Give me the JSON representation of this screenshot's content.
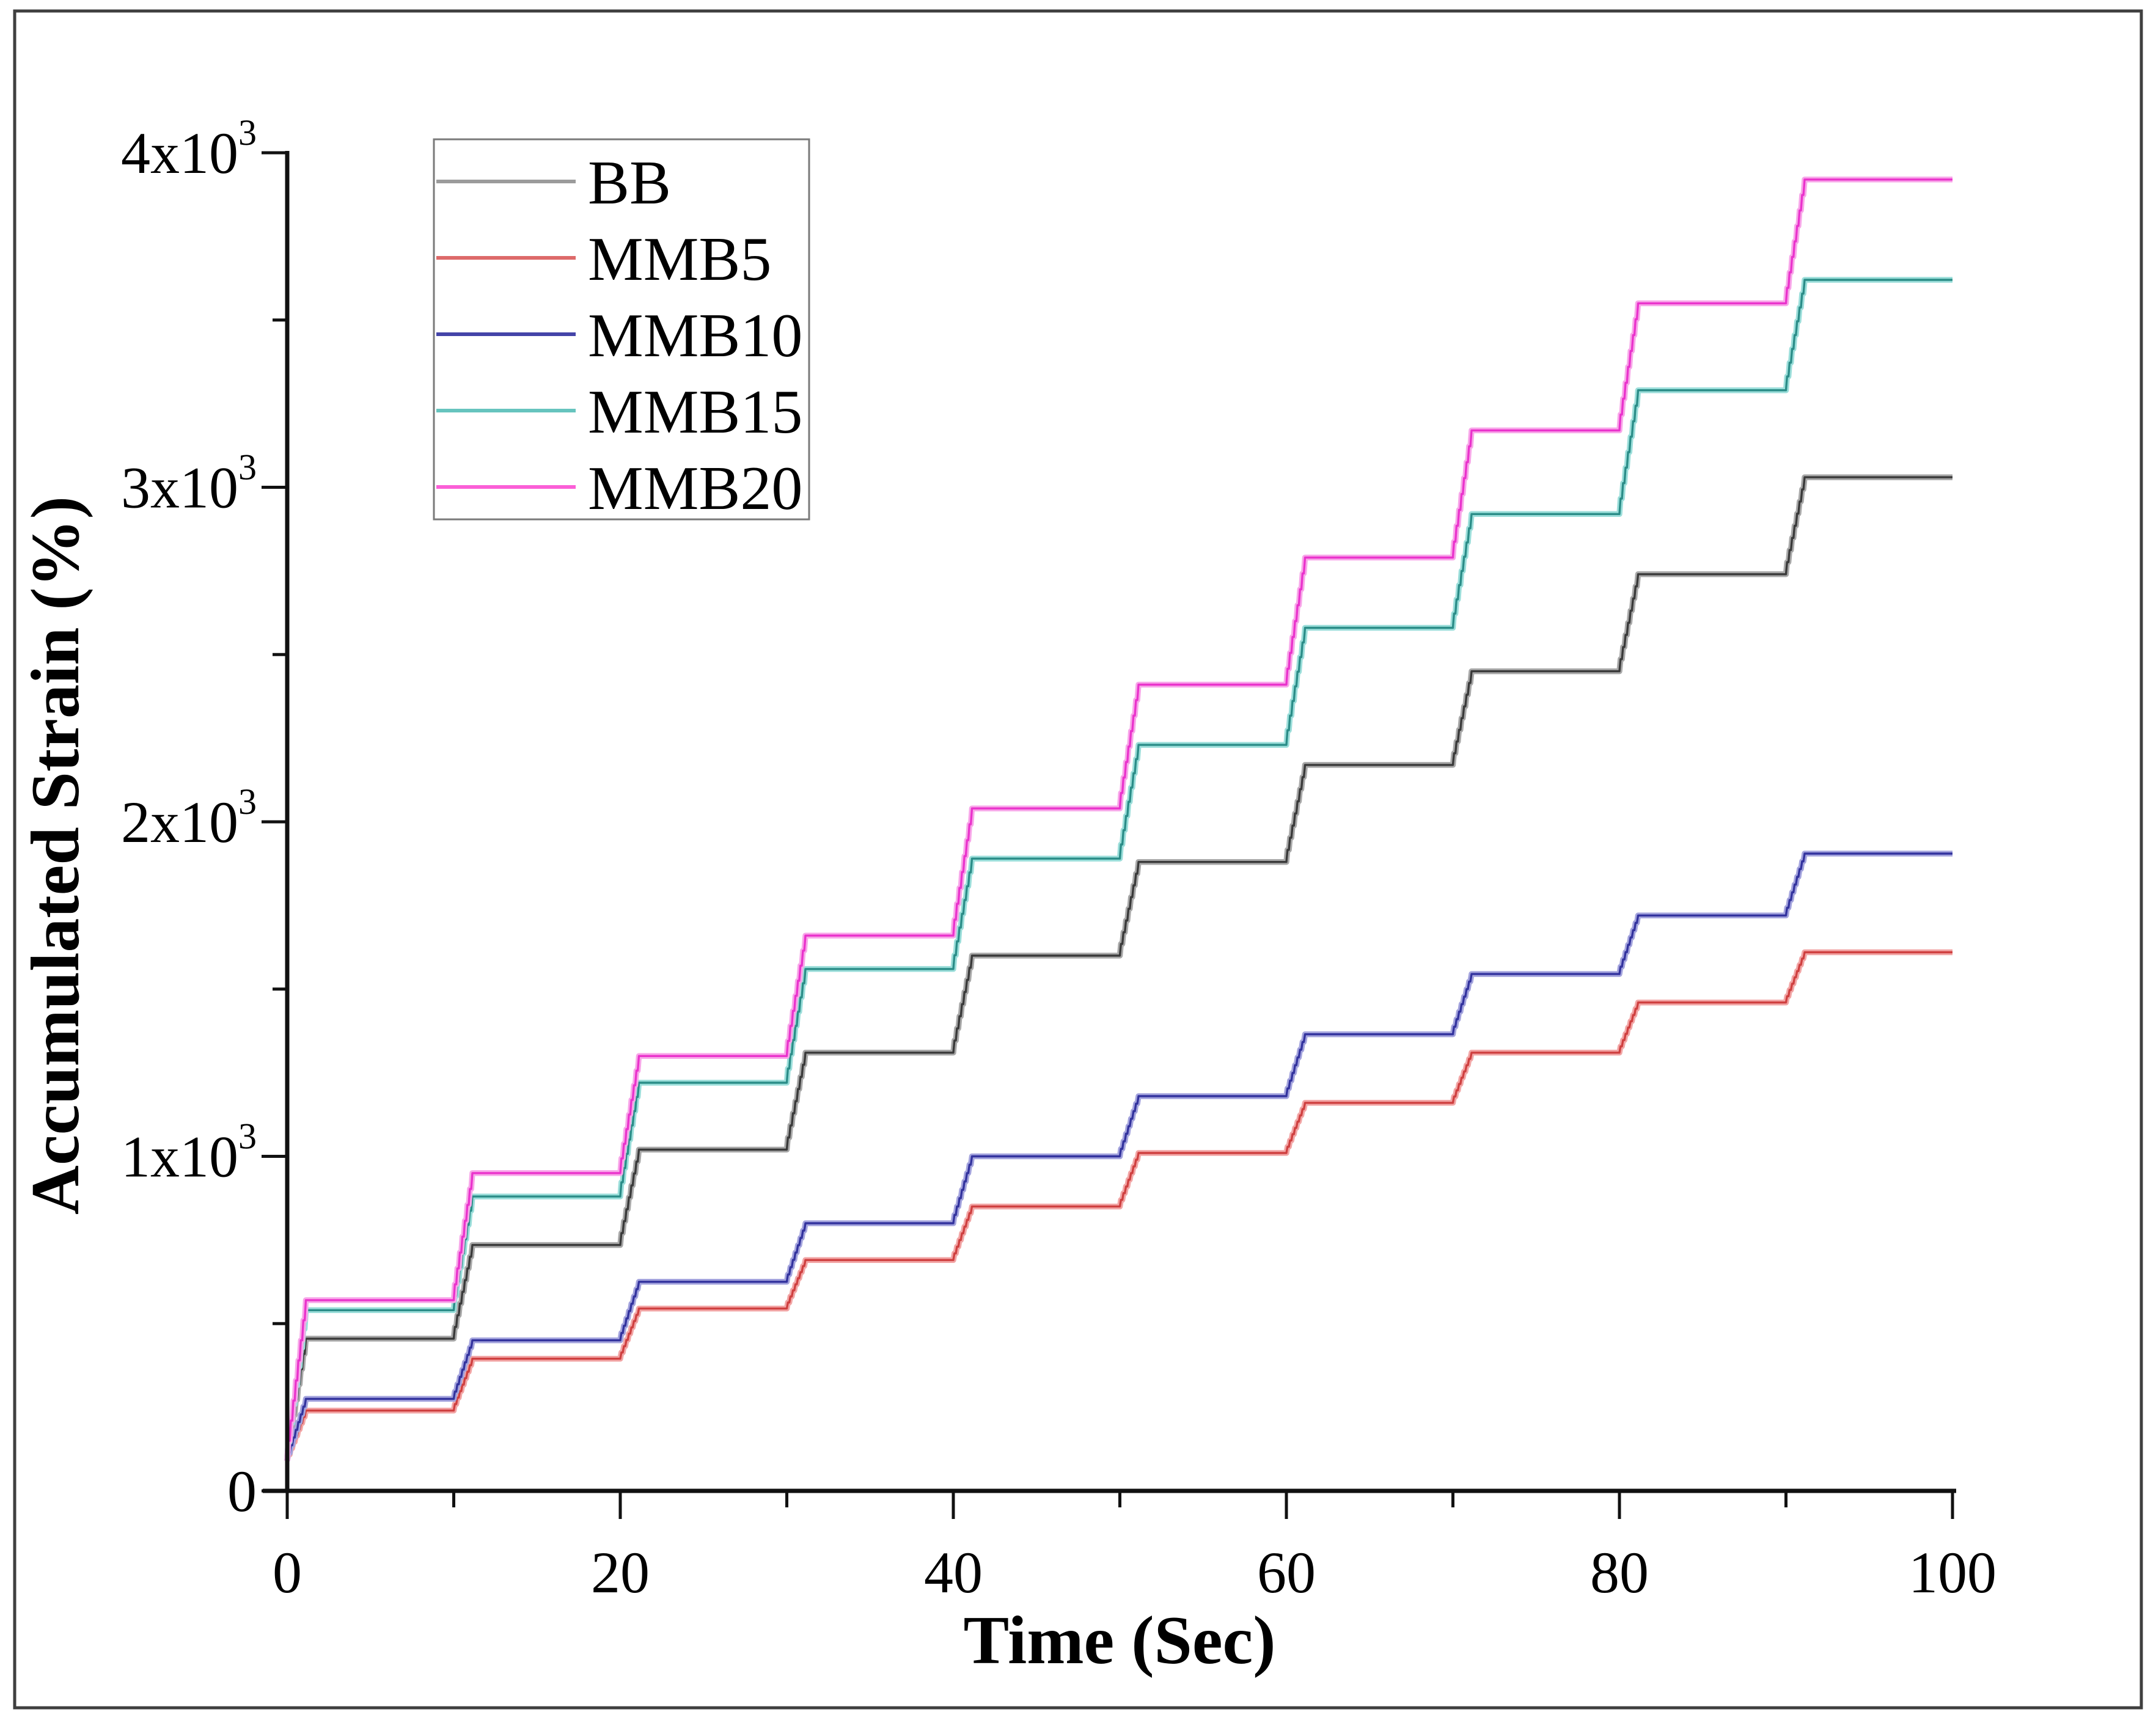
{
  "figure": {
    "background": "#ffffff",
    "border_color": "#3f3f3f",
    "axis_color": "#111111"
  },
  "chart_data": {
    "type": "line",
    "title": "",
    "xlabel": "Time (Sec)",
    "ylabel": "Accumulated Strain (%)",
    "xlim": [
      0,
      100
    ],
    "ylim": [
      0,
      4000
    ],
    "grid": false,
    "legend_position": "top-left-inside",
    "x_major_ticks": [
      0,
      20,
      40,
      60,
      80,
      100
    ],
    "x_minor_ticks": [
      10,
      30,
      50,
      70,
      90
    ],
    "y_major_ticks": [
      {
        "value": 0,
        "base": "0",
        "exp": ""
      },
      {
        "value": 1000,
        "base": "1x10",
        "exp": "3"
      },
      {
        "value": 2000,
        "base": "2x10",
        "exp": "3"
      },
      {
        "value": 3000,
        "base": "3x10",
        "exp": "3"
      },
      {
        "value": 4000,
        "base": "4x10",
        "exp": "3"
      }
    ],
    "y_minor_ticks": [
      500,
      1500,
      2500,
      3500
    ],
    "x": "time steps of 10 seconds; each series ramps at the start of each decade then holds a plateau",
    "start_time": 0,
    "start_value": 90,
    "step_period_sec": 10,
    "ramp_duration_sec": 1.2,
    "series": [
      {
        "name": "BB",
        "color": "#3a3a3a",
        "halo": "#a8a8a8",
        "legend_color": "#9b9b9b",
        "plateaus": [
          455,
          735,
          1020,
          1310,
          1600,
          1880,
          2170,
          2450,
          2740,
          3030
        ]
      },
      {
        "name": "MMB5",
        "color": "#cf4040",
        "halo": "#f2a5a5",
        "legend_color": "#dd6a6a",
        "plateaus": [
          240,
          395,
          545,
          690,
          850,
          1010,
          1160,
          1310,
          1460,
          1610
        ]
      },
      {
        "name": "MMB10",
        "color": "#33339e",
        "halo": "#a3a3dd",
        "legend_color": "#4444a8",
        "plateaus": [
          275,
          450,
          625,
          800,
          1000,
          1180,
          1365,
          1545,
          1720,
          1905
        ]
      },
      {
        "name": "MMB15",
        "color": "#2b8d88",
        "halo": "#9bdeda",
        "legend_color": "#66c4be",
        "plateaus": [
          540,
          880,
          1220,
          1560,
          1890,
          2230,
          2580,
          2920,
          3290,
          3620
        ]
      },
      {
        "name": "MMB20",
        "color": "#ea33cc",
        "halo": "#f8a6e9",
        "legend_color": "#fb5fd7",
        "plateaus": [
          570,
          950,
          1300,
          1660,
          2040,
          2410,
          2790,
          3170,
          3550,
          3920
        ]
      }
    ]
  },
  "legend": {
    "entries": [
      "BB",
      "MMB5",
      "MMB10",
      "MMB15",
      "MMB20"
    ],
    "border_color": "#7a7a7a",
    "background": "#ffffff"
  }
}
